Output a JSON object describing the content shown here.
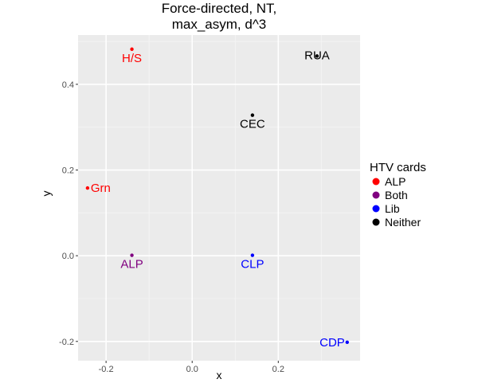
{
  "chart_data": {
    "type": "scatter",
    "title_lines": [
      "Force-directed, NT,",
      "max_asym, d^3"
    ],
    "xlabel": "x",
    "ylabel": "y",
    "xlim": [
      -0.265,
      0.39
    ],
    "ylim": [
      -0.245,
      0.515
    ],
    "x_ticks": [
      -0.2,
      0.0,
      0.2
    ],
    "x_tick_labels": [
      "-0.2",
      "0.0",
      "0.2"
    ],
    "y_ticks": [
      -0.2,
      0.0,
      0.2,
      0.4
    ],
    "y_tick_labels": [
      "-0.2",
      "0.0",
      "0.2",
      "0.4"
    ],
    "grid": true,
    "legend": {
      "title": "HTV cards",
      "placement": "right",
      "entries": [
        {
          "name": "ALP",
          "color": "#ff0000"
        },
        {
          "name": "Both",
          "color": "#800080"
        },
        {
          "name": "Lib",
          "color": "#0000ff"
        },
        {
          "name": "Neither",
          "color": "#000000"
        }
      ]
    },
    "points": [
      {
        "label": "H/S",
        "x": -0.14,
        "y": 0.482,
        "group": "ALP",
        "label_pos": "below"
      },
      {
        "label": "RUA",
        "x": 0.29,
        "y": 0.466,
        "group": "Neither",
        "label_pos": "above"
      },
      {
        "label": "CEC",
        "x": 0.14,
        "y": 0.328,
        "group": "Neither",
        "label_pos": "below"
      },
      {
        "label": "Grn",
        "x": -0.243,
        "y": 0.158,
        "group": "ALP",
        "label_pos": "right"
      },
      {
        "label": "ALP",
        "x": -0.14,
        "y": 0.001,
        "group": "Both",
        "label_pos": "below"
      },
      {
        "label": "CLP",
        "x": 0.14,
        "y": 0.001,
        "group": "Lib",
        "label_pos": "below"
      },
      {
        "label": "CDP",
        "x": 0.36,
        "y": -0.202,
        "group": "Lib",
        "label_pos": "left"
      }
    ]
  }
}
